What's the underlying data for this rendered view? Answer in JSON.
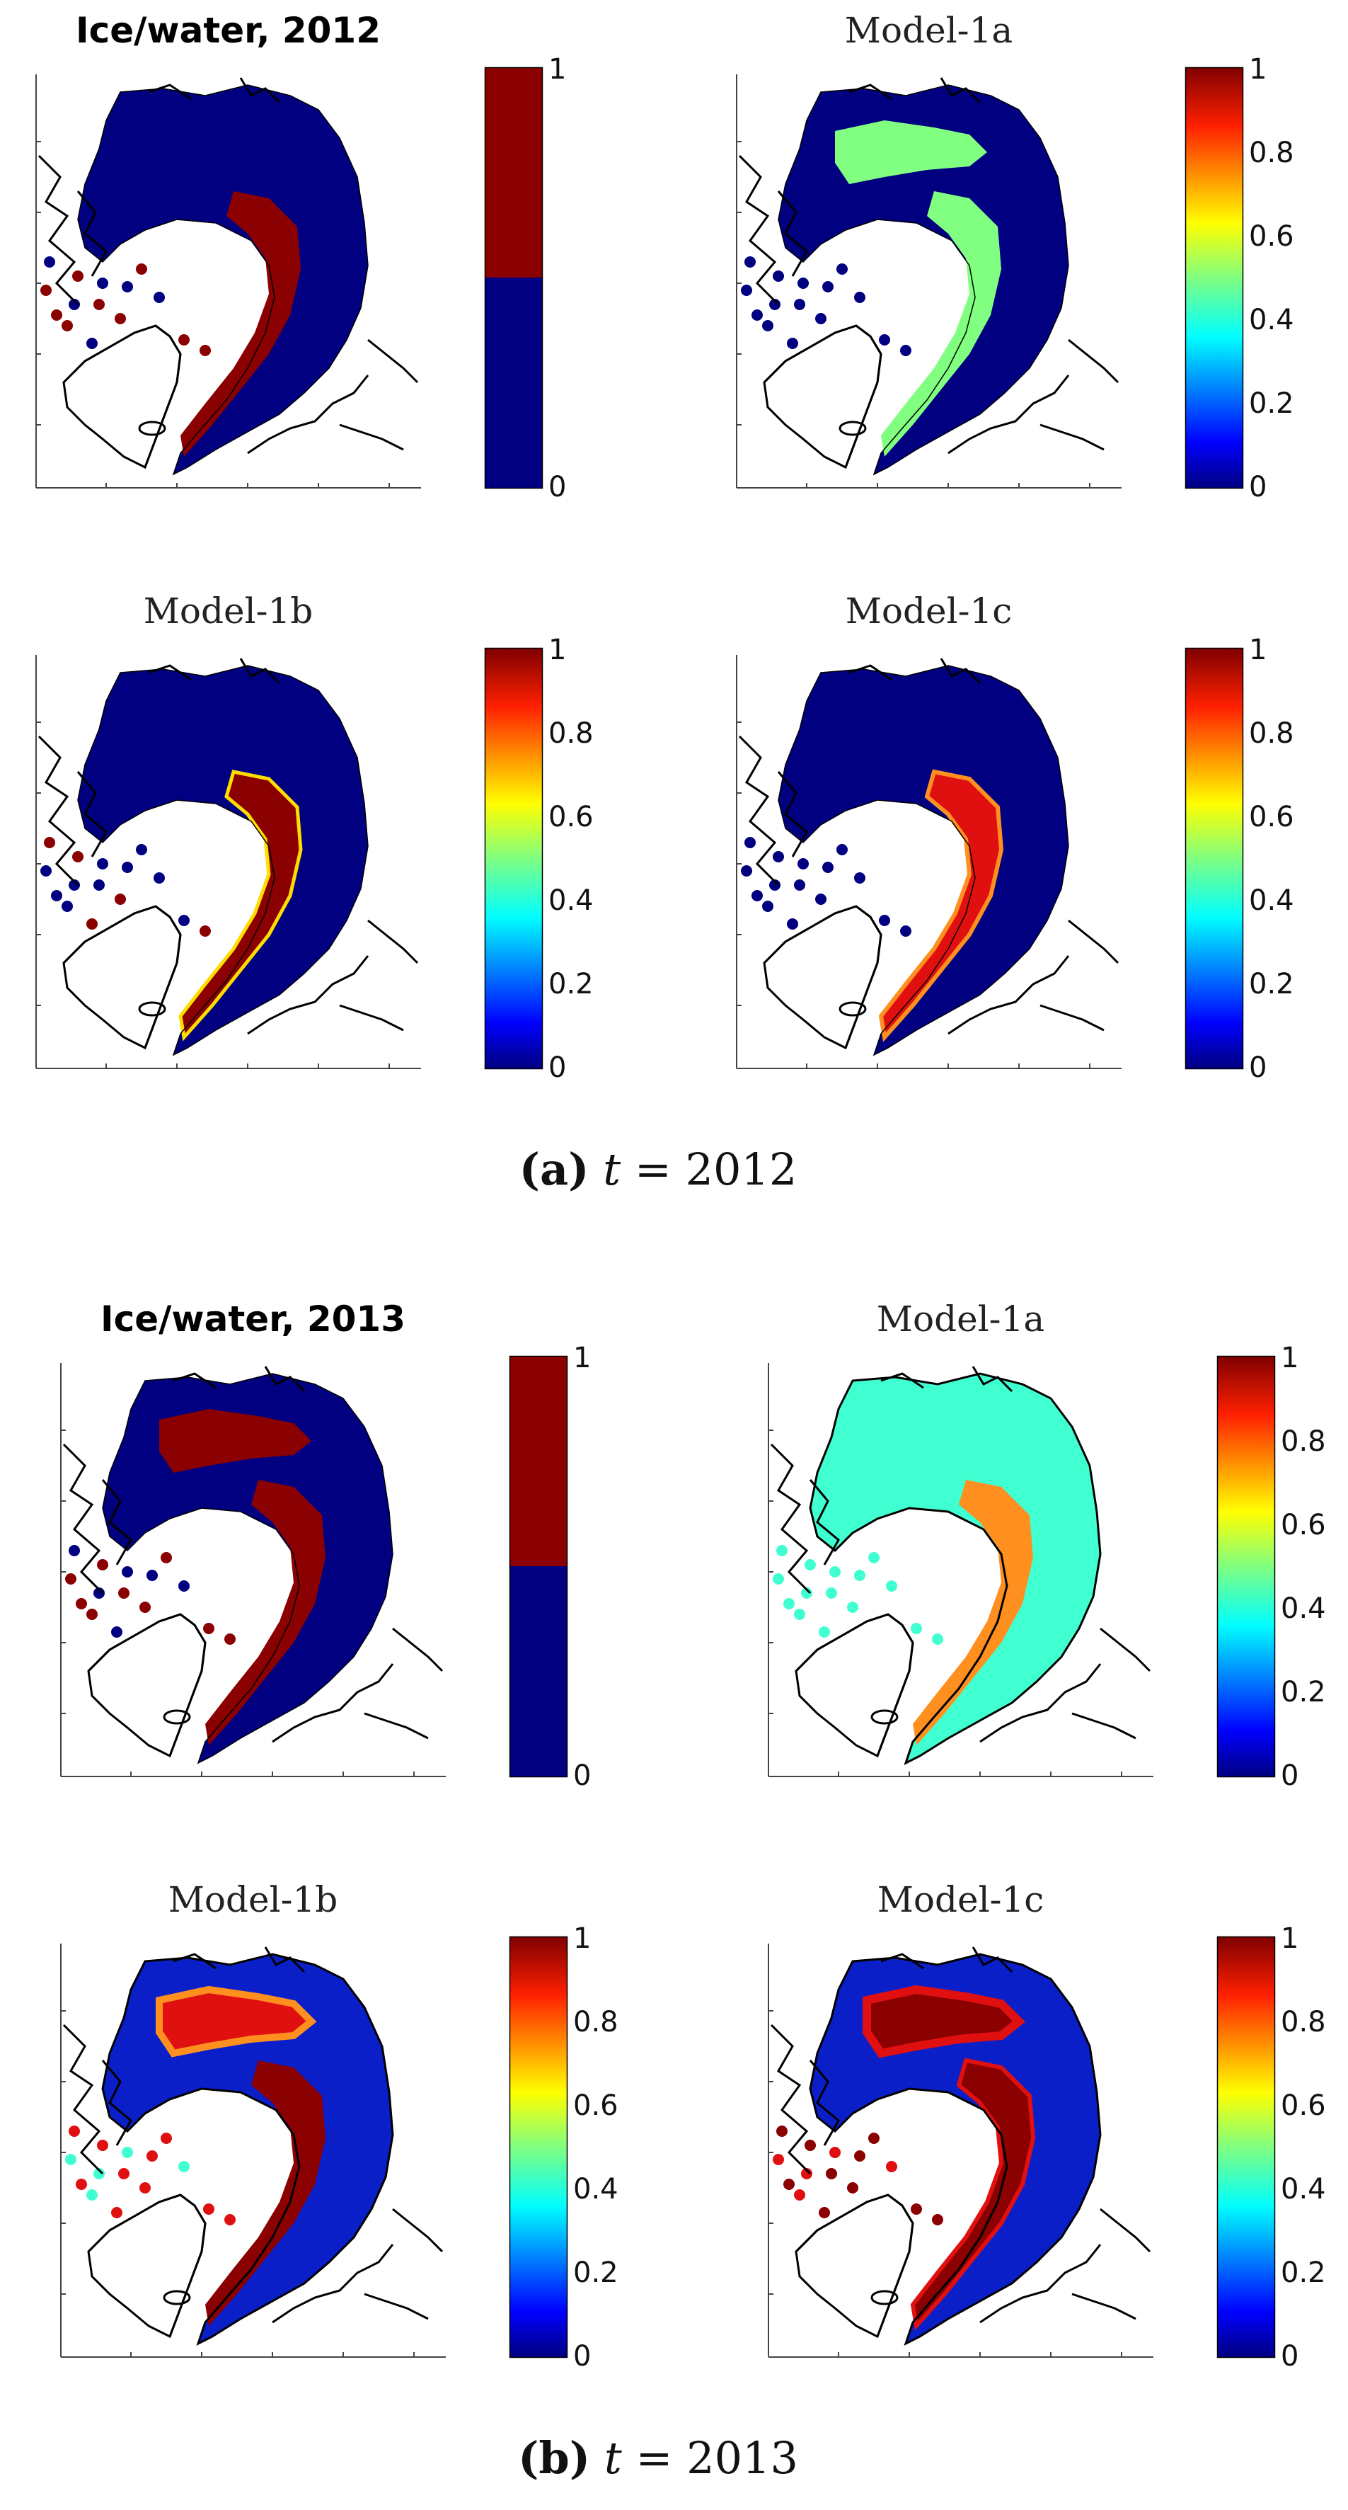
{
  "figure": {
    "sections": [
      {
        "caption_label": "(a)",
        "caption_var": "t",
        "caption_eq": "= 2012",
        "panels": [
          {
            "title": "Ice/water, 2012",
            "kind": "binary",
            "style": "obs_2012",
            "colorbar": {
              "type": "binary",
              "ticks": [
                "1",
                "0"
              ]
            }
          },
          {
            "title": "Model-1a",
            "kind": "prob",
            "style": "m1a_2012",
            "colorbar": {
              "type": "jet",
              "ticks": [
                "1",
                "0.8",
                "0.6",
                "0.4",
                "0.2",
                "0"
              ]
            }
          },
          {
            "title": "Model-1b",
            "kind": "prob",
            "style": "m1b_2012",
            "colorbar": {
              "type": "jet",
              "ticks": [
                "1",
                "0.8",
                "0.6",
                "0.4",
                "0.2",
                "0"
              ]
            }
          },
          {
            "title": "Model-1c",
            "kind": "prob",
            "style": "m1c_2012",
            "colorbar": {
              "type": "jet",
              "ticks": [
                "1",
                "0.8",
                "0.6",
                "0.4",
                "0.2",
                "0"
              ]
            }
          }
        ]
      },
      {
        "caption_label": "(b)",
        "caption_var": "t",
        "caption_eq": "= 2013",
        "panels": [
          {
            "title": "Ice/water, 2013",
            "kind": "binary",
            "style": "obs_2013",
            "colorbar": {
              "type": "binary",
              "ticks": [
                "1",
                "0"
              ]
            }
          },
          {
            "title": "Model-1a",
            "kind": "prob",
            "style": "m1a_2013",
            "colorbar": {
              "type": "jet",
              "ticks": [
                "1",
                "0.8",
                "0.6",
                "0.4",
                "0.2",
                "0"
              ]
            }
          },
          {
            "title": "Model-1b",
            "kind": "prob",
            "style": "m1b_2013",
            "colorbar": {
              "type": "jet",
              "ticks": [
                "1",
                "0.8",
                "0.6",
                "0.4",
                "0.2",
                "0"
              ]
            }
          },
          {
            "title": "Model-1c",
            "kind": "prob",
            "style": "m1c_2013",
            "colorbar": {
              "type": "jet",
              "ticks": [
                "1",
                "0.8",
                "0.6",
                "0.4",
                "0.2",
                "0"
              ]
            }
          }
        ]
      }
    ],
    "colors": {
      "dark_blue": "#000080",
      "blue": "#0a1fc8",
      "dark_red": "#8b0000",
      "red": "#e01010",
      "orange": "#ff9020",
      "green": "#80ff80",
      "cyan": "#40ffd0",
      "outline": "#000000"
    }
  }
}
